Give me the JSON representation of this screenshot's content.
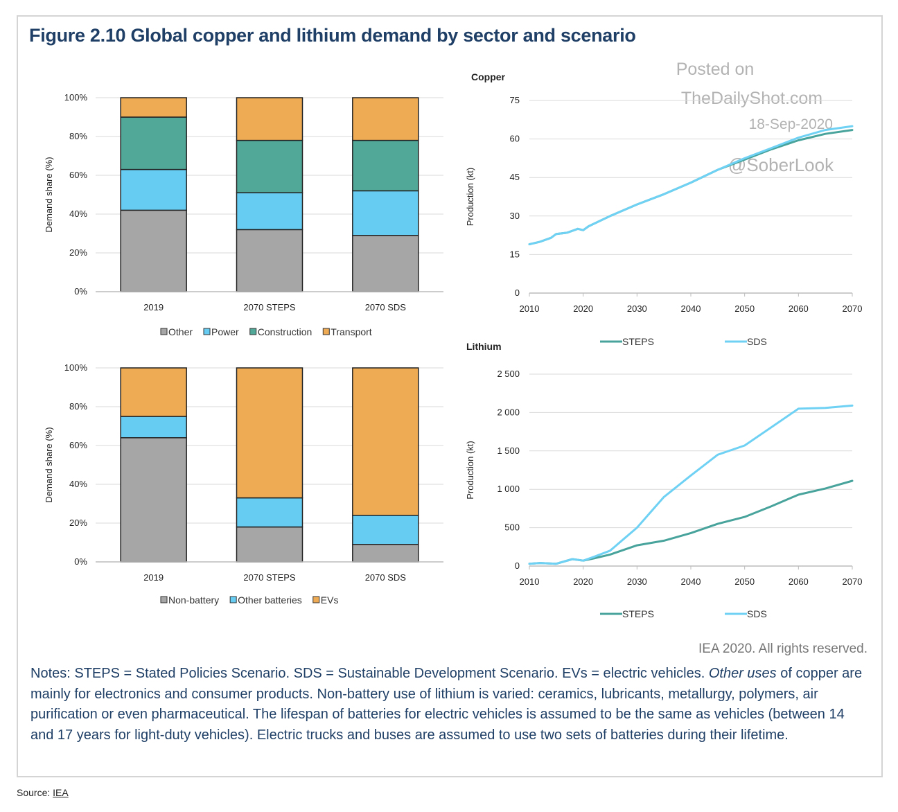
{
  "figure_title": "Figure 2.10 Global copper and lithium demand by sector and scenario",
  "watermark": {
    "line1": "Posted on",
    "line2": "TheDailyShot.com",
    "line3": "18-Sep-2020",
    "line4": "@SoberLook"
  },
  "rights": "IEA 2020. All rights reserved.",
  "notes": {
    "part1": "Notes: STEPS = Stated Policies Scenario. SDS = Sustainable Development Scenario. EVs = electric vehicles. ",
    "italic": "Other uses",
    "part2": " of copper are mainly for electronics and consumer products. Non-battery use of lithium is varied: ceramics, lubricants, metallurgy, polymers, air purification or even pharmaceutical. The lifespan of batteries for electric vehicles is assumed to be the same as vehicles (between 14 and 17 years for light-duty vehicles). Electric trucks and buses are assumed to use two sets of batteries during their lifetime."
  },
  "source": {
    "label": "Source: ",
    "link_text": "IEA"
  },
  "colors": {
    "other": "#a6a6a6",
    "power": "#66ccf2",
    "construction": "#52a898",
    "transport": "#efaa54",
    "steps": "#47a39b",
    "sds": "#6fd1f3",
    "grid": "#d9d9d9",
    "bar_stroke": "#222222"
  },
  "chart_data": [
    {
      "id": "copper-share",
      "type": "bar",
      "stacked": true,
      "categories": [
        "2019",
        "2070 STEPS",
        "2070 SDS"
      ],
      "series": [
        {
          "name": "Other",
          "color_key": "other",
          "values": [
            42,
            32,
            29
          ]
        },
        {
          "name": "Power",
          "color_key": "power",
          "values": [
            21,
            19,
            23
          ]
        },
        {
          "name": "Construction",
          "color_key": "construction",
          "values": [
            27,
            27,
            26
          ]
        },
        {
          "name": "Transport",
          "color_key": "transport",
          "values": [
            10,
            22,
            22
          ]
        }
      ],
      "ylabel": "Demand share (%)",
      "ylim": [
        0,
        100
      ],
      "yticks": [
        "0%",
        "20%",
        "40%",
        "60%",
        "80%",
        "100%"
      ]
    },
    {
      "id": "copper-production",
      "type": "line",
      "title": "Copper",
      "ylabel": "Production (kt)",
      "xlim": [
        2010,
        2070
      ],
      "ylim": [
        0,
        75
      ],
      "xticks": [
        "2010",
        "2020",
        "2030",
        "2040",
        "2050",
        "2060",
        "2070"
      ],
      "yticks": [
        "0",
        "15",
        "30",
        "45",
        "60",
        "75"
      ],
      "series": [
        {
          "name": "STEPS",
          "color_key": "steps",
          "x": [
            2010,
            2012,
            2014,
            2015,
            2017,
            2019,
            2020,
            2021,
            2025,
            2030,
            2035,
            2040,
            2045,
            2050,
            2055,
            2060,
            2065,
            2070
          ],
          "y": [
            19,
            20,
            21.5,
            23,
            23.5,
            25,
            24.5,
            26,
            30,
            34.5,
            38.5,
            43,
            48,
            52,
            56,
            59.5,
            62,
            63.5
          ]
        },
        {
          "name": "SDS",
          "color_key": "sds",
          "x": [
            2010,
            2012,
            2014,
            2015,
            2017,
            2019,
            2020,
            2021,
            2025,
            2030,
            2035,
            2040,
            2045,
            2050,
            2055,
            2060,
            2065,
            2070
          ],
          "y": [
            19,
            20,
            21.5,
            23,
            23.5,
            25,
            24.5,
            26,
            30,
            34.5,
            38.5,
            43,
            48,
            52.5,
            56.5,
            60.5,
            63.5,
            65
          ]
        }
      ],
      "legend": [
        "STEPS",
        "SDS"
      ]
    },
    {
      "id": "lithium-share",
      "type": "bar",
      "stacked": true,
      "categories": [
        "2019",
        "2070 STEPS",
        "2070 SDS"
      ],
      "series": [
        {
          "name": "Non-battery",
          "color_key": "other",
          "values": [
            64,
            18,
            9
          ]
        },
        {
          "name": "Other batteries",
          "color_key": "power",
          "values": [
            11,
            15,
            15
          ]
        },
        {
          "name": "EVs",
          "color_key": "transport",
          "values": [
            25,
            67,
            76
          ]
        }
      ],
      "ylabel": "Demand share (%)",
      "ylim": [
        0,
        100
      ],
      "yticks": [
        "0%",
        "20%",
        "40%",
        "60%",
        "80%",
        "100%"
      ]
    },
    {
      "id": "lithium-production",
      "type": "line",
      "title": "Lithium",
      "ylabel": "Production (kt)",
      "xlim": [
        2010,
        2070
      ],
      "ylim": [
        0,
        2500
      ],
      "xticks": [
        "2010",
        "2020",
        "2030",
        "2040",
        "2050",
        "2060",
        "2070"
      ],
      "yticks": [
        "0",
        "500",
        "1 000",
        "1 500",
        "2 000",
        "2 500"
      ],
      "series": [
        {
          "name": "STEPS",
          "color_key": "steps",
          "x": [
            2010,
            2012,
            2015,
            2018,
            2020,
            2022,
            2025,
            2030,
            2035,
            2040,
            2045,
            2050,
            2055,
            2060,
            2065,
            2070
          ],
          "y": [
            30,
            40,
            30,
            90,
            70,
            100,
            150,
            270,
            330,
            430,
            550,
            640,
            780,
            930,
            1010,
            1110
          ]
        },
        {
          "name": "SDS",
          "color_key": "sds",
          "x": [
            2010,
            2012,
            2015,
            2018,
            2020,
            2022,
            2025,
            2030,
            2035,
            2040,
            2045,
            2050,
            2055,
            2060,
            2065,
            2070
          ],
          "y": [
            30,
            40,
            30,
            90,
            70,
            120,
            200,
            500,
            900,
            1180,
            1450,
            1570,
            1810,
            2050,
            2060,
            2090
          ]
        }
      ],
      "legend": [
        "STEPS",
        "SDS"
      ]
    }
  ]
}
